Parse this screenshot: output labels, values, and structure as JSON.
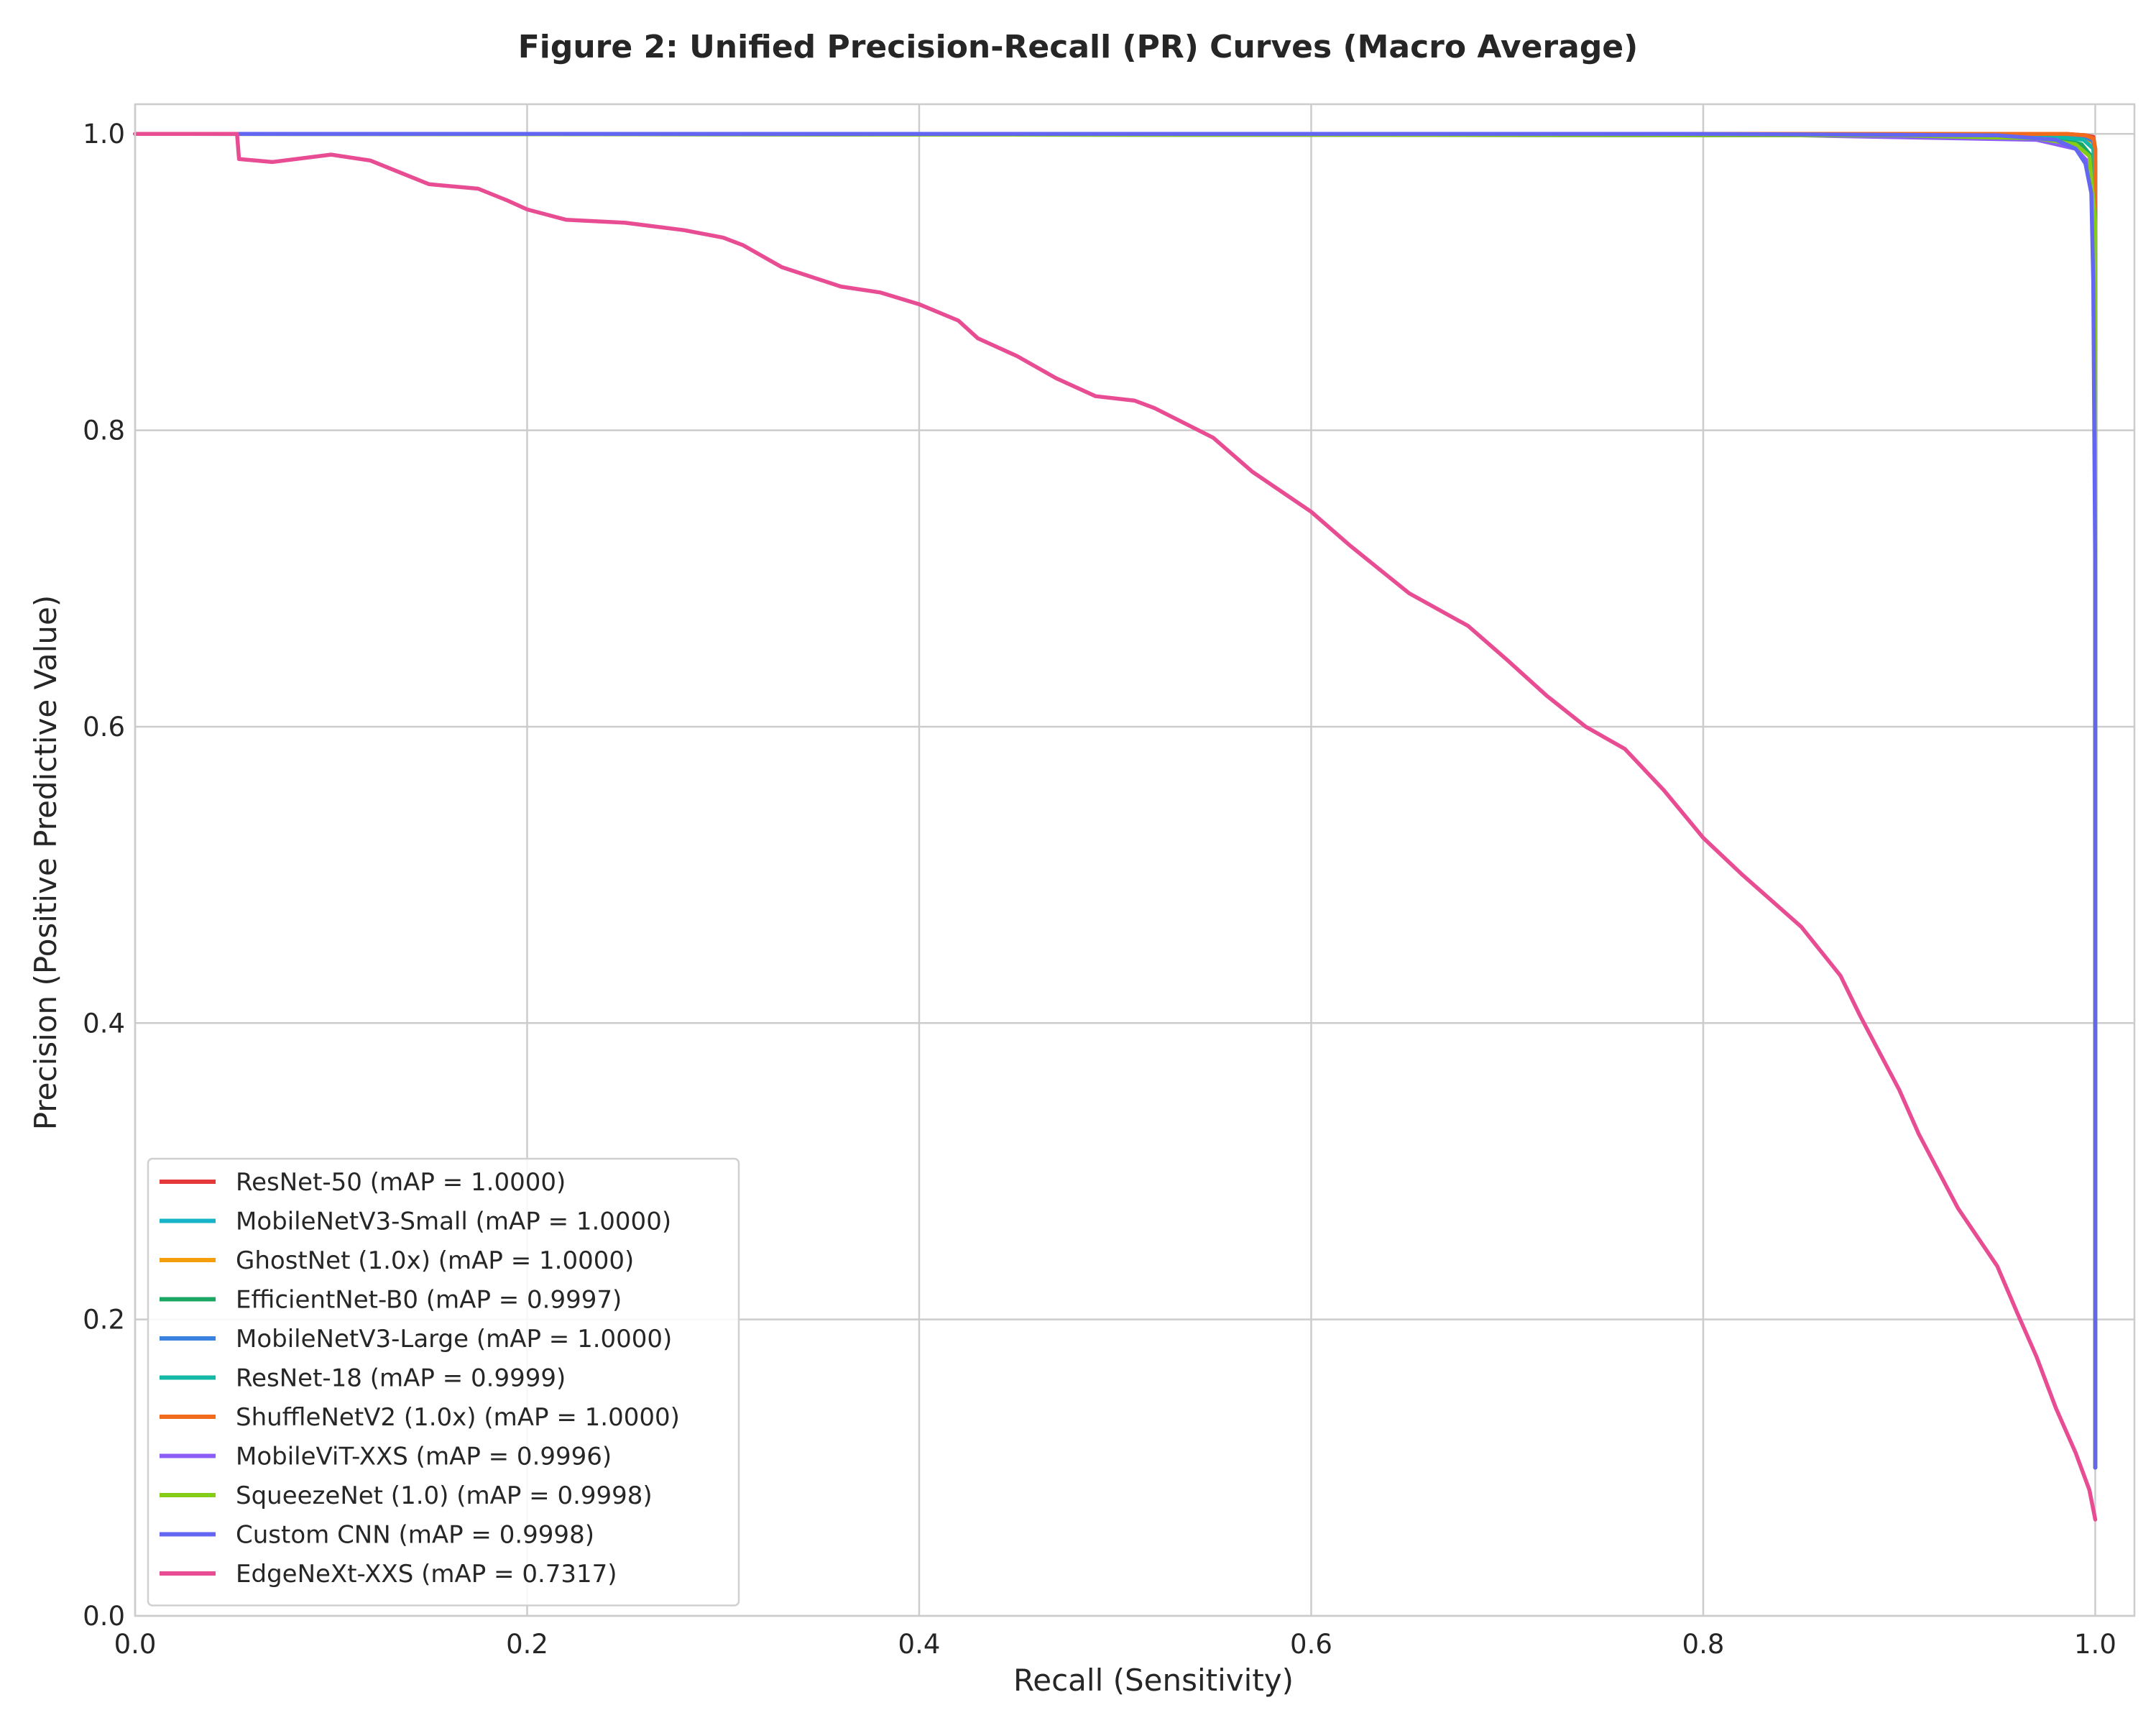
{
  "chart_data": {
    "type": "line",
    "title": "Figure 2: Unified Precision-Recall (PR) Curves (Macro Average)",
    "xlabel": "Recall (Sensitivity)",
    "ylabel": "Precision (Positive Predictive Value)",
    "xlim": [
      0.0,
      1.02
    ],
    "ylim": [
      0.0,
      1.02
    ],
    "x_ticks": [
      "0.0",
      "0.2",
      "0.4",
      "0.6",
      "0.8",
      "1.0"
    ],
    "y_ticks": [
      "0.0",
      "0.2",
      "0.4",
      "0.6",
      "0.8",
      "1.0"
    ],
    "grid": true,
    "legend_position": "lower-left",
    "series": [
      {
        "name": "ResNet-50 (mAP = 1.0000)",
        "color": "#e5383b",
        "points": [
          [
            0,
            1.0
          ],
          [
            0.96,
            1.0
          ],
          [
            0.985,
            1.0
          ],
          [
            0.995,
            0.999
          ],
          [
            0.999,
            0.998
          ],
          [
            1.0,
            0.99
          ],
          [
            1.0,
            0.1
          ]
        ]
      },
      {
        "name": "MobileNetV3-Small (mAP = 1.0000)",
        "color": "#17b3c9",
        "points": [
          [
            0,
            1.0
          ],
          [
            0.96,
            1.0
          ],
          [
            0.985,
            0.999
          ],
          [
            0.995,
            0.998
          ],
          [
            0.999,
            0.996
          ],
          [
            1.0,
            0.985
          ],
          [
            1.0,
            0.1
          ]
        ]
      },
      {
        "name": "GhostNet (1.0x) (mAP = 1.0000)",
        "color": "#f59e0b",
        "points": [
          [
            0,
            1.0
          ],
          [
            0.95,
            1.0
          ],
          [
            0.985,
            0.999
          ],
          [
            0.995,
            0.997
          ],
          [
            0.999,
            0.994
          ],
          [
            1.0,
            0.98
          ],
          [
            1.0,
            0.1
          ]
        ]
      },
      {
        "name": "EfficientNet-B0 (mAP = 0.9997)",
        "color": "#1aa663",
        "points": [
          [
            0,
            1.0
          ],
          [
            0.9,
            0.999
          ],
          [
            0.98,
            0.997
          ],
          [
            0.993,
            0.993
          ],
          [
            0.998,
            0.985
          ],
          [
            1.0,
            0.95
          ],
          [
            1.0,
            0.1
          ]
        ]
      },
      {
        "name": "MobileNetV3-Large (mAP = 1.0000)",
        "color": "#3b82e0",
        "points": [
          [
            0,
            1.0
          ],
          [
            0.95,
            1.0
          ],
          [
            0.985,
            0.999
          ],
          [
            0.995,
            0.998
          ],
          [
            0.999,
            0.995
          ],
          [
            1.0,
            0.98
          ],
          [
            1.0,
            0.1
          ]
        ]
      },
      {
        "name": "ResNet-18 (mAP = 0.9999)",
        "color": "#14b8a6",
        "points": [
          [
            0,
            1.0
          ],
          [
            0.93,
            1.0
          ],
          [
            0.98,
            0.998
          ],
          [
            0.994,
            0.996
          ],
          [
            0.999,
            0.99
          ],
          [
            1.0,
            0.97
          ],
          [
            1.0,
            0.1
          ]
        ]
      },
      {
        "name": "ShuffleNetV2 (1.0x) (mAP = 1.0000)",
        "color": "#f26b1d",
        "points": [
          [
            0,
            1.0
          ],
          [
            0.96,
            1.0
          ],
          [
            0.985,
            1.0
          ],
          [
            0.995,
            0.999
          ],
          [
            0.999,
            0.997
          ],
          [
            1.0,
            0.99
          ],
          [
            1.0,
            0.1
          ]
        ]
      },
      {
        "name": "MobileViT-XXS (mAP = 0.9996)",
        "color": "#8b5cf6",
        "points": [
          [
            0,
            1.0
          ],
          [
            0.85,
            0.999
          ],
          [
            0.97,
            0.996
          ],
          [
            0.99,
            0.99
          ],
          [
            0.997,
            0.98
          ],
          [
            1.0,
            0.94
          ],
          [
            1.0,
            0.1
          ]
        ]
      },
      {
        "name": "SqueezeNet (1.0) (mAP = 0.9998)",
        "color": "#84cc16",
        "points": [
          [
            0,
            1.0
          ],
          [
            0.9,
            0.999
          ],
          [
            0.97,
            0.997
          ],
          [
            0.99,
            0.993
          ],
          [
            0.997,
            0.985
          ],
          [
            1.0,
            0.94
          ],
          [
            1.0,
            0.1
          ]
        ]
      },
      {
        "name": "Custom CNN (mAP = 0.9998)",
        "color": "#6366f1",
        "points": [
          [
            0,
            1.0
          ],
          [
            0.79,
            1.0
          ],
          [
            0.95,
            0.999
          ],
          [
            0.98,
            0.996
          ],
          [
            0.99,
            0.99
          ],
          [
            0.995,
            0.98
          ],
          [
            0.998,
            0.96
          ],
          [
            0.999,
            0.9
          ],
          [
            1.0,
            0.7
          ],
          [
            1.0,
            0.1
          ]
        ]
      },
      {
        "name": "EdgeNeXt-XXS (mAP = 0.7317)",
        "color": "#e84c93",
        "points": [
          [
            0,
            1.0
          ],
          [
            0.052,
            1.0
          ],
          [
            0.053,
            0.983
          ],
          [
            0.07,
            0.981
          ],
          [
            0.1,
            0.986
          ],
          [
            0.12,
            0.982
          ],
          [
            0.15,
            0.966
          ],
          [
            0.175,
            0.963
          ],
          [
            0.19,
            0.955
          ],
          [
            0.2,
            0.949
          ],
          [
            0.22,
            0.942
          ],
          [
            0.25,
            0.94
          ],
          [
            0.28,
            0.935
          ],
          [
            0.3,
            0.93
          ],
          [
            0.31,
            0.925
          ],
          [
            0.33,
            0.91
          ],
          [
            0.36,
            0.897
          ],
          [
            0.38,
            0.893
          ],
          [
            0.4,
            0.885
          ],
          [
            0.42,
            0.874
          ],
          [
            0.43,
            0.862
          ],
          [
            0.45,
            0.85
          ],
          [
            0.47,
            0.835
          ],
          [
            0.49,
            0.823
          ],
          [
            0.51,
            0.82
          ],
          [
            0.52,
            0.815
          ],
          [
            0.55,
            0.795
          ],
          [
            0.57,
            0.772
          ],
          [
            0.6,
            0.745
          ],
          [
            0.62,
            0.722
          ],
          [
            0.65,
            0.69
          ],
          [
            0.68,
            0.668
          ],
          [
            0.7,
            0.645
          ],
          [
            0.72,
            0.621
          ],
          [
            0.74,
            0.6
          ],
          [
            0.76,
            0.585
          ],
          [
            0.78,
            0.557
          ],
          [
            0.8,
            0.525
          ],
          [
            0.82,
            0.5
          ],
          [
            0.85,
            0.465
          ],
          [
            0.87,
            0.432
          ],
          [
            0.88,
            0.405
          ],
          [
            0.89,
            0.38
          ],
          [
            0.9,
            0.355
          ],
          [
            0.91,
            0.325
          ],
          [
            0.92,
            0.3
          ],
          [
            0.93,
            0.275
          ],
          [
            0.95,
            0.236
          ],
          [
            0.96,
            0.205
          ],
          [
            0.97,
            0.175
          ],
          [
            0.98,
            0.14
          ],
          [
            0.99,
            0.11
          ],
          [
            0.997,
            0.085
          ],
          [
            1.0,
            0.065
          ]
        ]
      }
    ]
  }
}
